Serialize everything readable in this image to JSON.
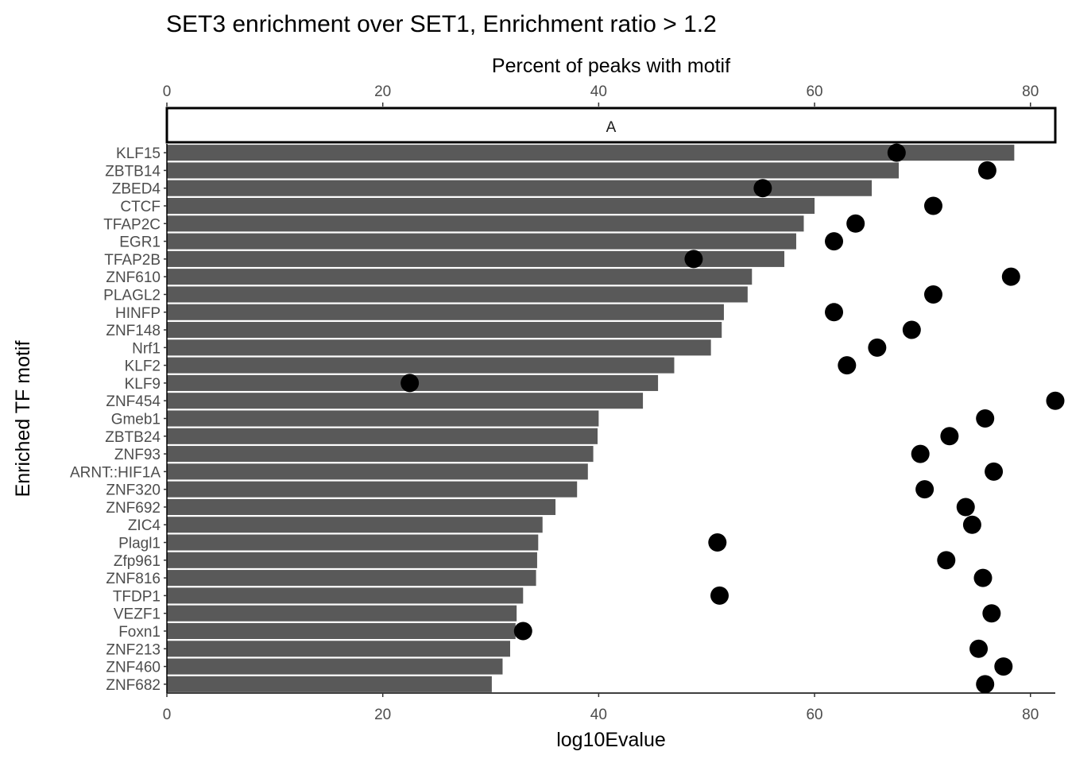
{
  "chart_data": {
    "type": "bar",
    "title": "SET3 enrichment over SET1, Enrichment ratio > 1.2",
    "xlabel": "log10Evalue",
    "ylabel": "Enriched TF motif",
    "secondary_xlabel": "Percent of peaks with motif",
    "facet_label": "A",
    "xlim": [
      0,
      82.3
    ],
    "x_ticks": [
      0,
      20,
      40,
      60,
      80
    ],
    "grid": false,
    "categories": [
      "KLF15",
      "ZBTB14",
      "ZBED4",
      "CTCF",
      "TFAP2C",
      "EGR1",
      "TFAP2B",
      "ZNF610",
      "PLAGL2",
      "HINFP",
      "ZNF148",
      "Nrf1",
      "KLF2",
      "KLF9",
      "ZNF454",
      "Gmeb1",
      "ZBTB24",
      "ZNF93",
      "ARNT::HIF1A",
      "ZNF320",
      "ZNF692",
      "ZIC4",
      "Plagl1",
      "Zfp961",
      "ZNF816",
      "TFDP1",
      "VEZF1",
      "Foxn1",
      "ZNF213",
      "ZNF460",
      "ZNF682"
    ],
    "series": [
      {
        "name": "log10Evalue",
        "kind": "bar",
        "values": [
          78.5,
          67.8,
          65.3,
          60.0,
          59.0,
          58.3,
          57.2,
          54.2,
          53.8,
          51.6,
          51.4,
          50.4,
          47.0,
          45.5,
          44.1,
          40.0,
          39.9,
          39.5,
          39.0,
          38.0,
          36.0,
          34.8,
          34.4,
          34.3,
          34.2,
          33.0,
          32.4,
          32.3,
          31.8,
          31.1,
          30.1
        ]
      },
      {
        "name": "Percent of peaks with motif",
        "kind": "point",
        "values": [
          67.6,
          76.0,
          55.2,
          71.0,
          63.8,
          61.8,
          48.8,
          78.2,
          71.0,
          61.8,
          69.0,
          65.8,
          63.0,
          22.5,
          82.3,
          75.8,
          72.5,
          69.8,
          76.6,
          70.2,
          74.0,
          74.6,
          51.0,
          72.2,
          75.6,
          51.2,
          76.4,
          33.0,
          75.2,
          77.5,
          75.8
        ]
      }
    ],
    "bar_color": "#595959",
    "point_color": "#000000"
  }
}
